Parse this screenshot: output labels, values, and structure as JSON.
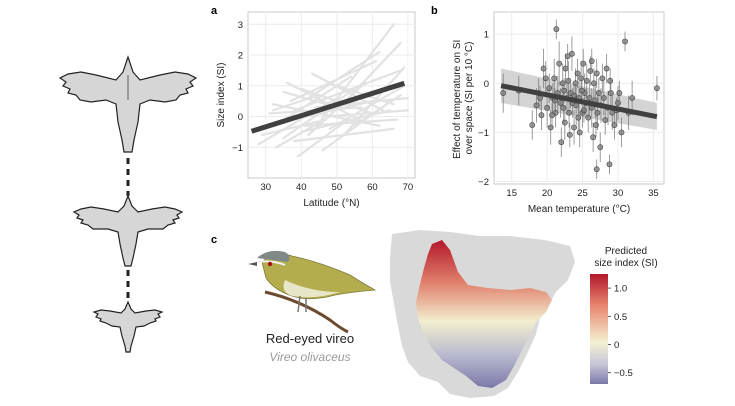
{
  "panels": {
    "a_letter": "a",
    "b_letter": "b",
    "c_letter": "c"
  },
  "chart_data": [
    {
      "panel": "a",
      "type": "line",
      "xlabel": "Latitude (°N)",
      "ylabel": "Size index (SI)",
      "xlim": [
        25,
        72
      ],
      "ylim": [
        -2,
        3.4
      ],
      "xticks": [
        30,
        40,
        50,
        60,
        70
      ],
      "yticks": [
        -1,
        0,
        1,
        2,
        3
      ],
      "grid": true,
      "series": [
        {
          "x": [
            26,
            69
          ],
          "y": [
            -0.48,
            1.08
          ]
        }
      ],
      "species_lines": [
        [
          30,
          -0.3,
          60,
          0.5
        ],
        [
          32,
          0.4,
          62,
          -0.3
        ],
        [
          35,
          -0.7,
          55,
          0.9
        ],
        [
          38,
          0.2,
          68,
          1.5
        ],
        [
          40,
          -0.5,
          65,
          0.2
        ],
        [
          42,
          0.6,
          62,
          2.1
        ],
        [
          45,
          -0.2,
          66,
          3.0
        ],
        [
          28,
          -0.9,
          50,
          0.6
        ],
        [
          36,
          1.1,
          58,
          -0.2
        ],
        [
          44,
          0.3,
          70,
          0.6
        ],
        [
          33,
          -1.0,
          48,
          0.0
        ],
        [
          48,
          -0.4,
          69,
          1.0
        ],
        [
          40,
          0.9,
          60,
          0.1
        ],
        [
          50,
          0.2,
          68,
          2.4
        ],
        [
          31,
          0.1,
          57,
          0.3
        ],
        [
          38,
          -0.8,
          66,
          -0.4
        ],
        [
          46,
          -1.1,
          64,
          0.4
        ],
        [
          43,
          1.4,
          63,
          0.2
        ],
        [
          34,
          -0.2,
          54,
          1.3
        ],
        [
          52,
          -0.6,
          69,
          1.6
        ],
        [
          29,
          -0.6,
          47,
          -0.1
        ],
        [
          37,
          0.5,
          61,
          1.8
        ],
        [
          41,
          -0.3,
          67,
          -0.1
        ],
        [
          47,
          0.0,
          70,
          0.2
        ],
        [
          39,
          -1.3,
          52,
          -0.2
        ],
        [
          55,
          -0.3,
          68,
          0.7
        ],
        [
          35,
          0.8,
          50,
          0.3
        ],
        [
          42,
          -0.6,
          58,
          1.1
        ],
        [
          50,
          1.0,
          66,
          0.4
        ],
        [
          32,
          0.2,
          45,
          0.7
        ]
      ]
    },
    {
      "panel": "b",
      "type": "scatter",
      "xlabel": "Mean temperature (°C)",
      "ylabel": "Effect of temperature on SI over space (SI per 10 °C)",
      "xlim": [
        12.5,
        36.5
      ],
      "ylim": [
        -2.05,
        1.45
      ],
      "xticks": [
        15,
        20,
        25,
        30,
        35
      ],
      "yticks": [
        -2,
        -1,
        0,
        1
      ],
      "grid": true,
      "fit": {
        "x": [
          13.5,
          35.5
        ],
        "y": [
          -0.05,
          -0.68
        ]
      },
      "band": {
        "x": [
          13.5,
          35.5
        ],
        "upper": [
          0.3,
          -0.4
        ],
        "lower": [
          -0.4,
          -0.95
        ]
      },
      "points": [
        [
          13.8,
          -0.2,
          0.4
        ],
        [
          16.0,
          -0.15,
          0.3
        ],
        [
          17.9,
          -0.85,
          0.3
        ],
        [
          18.5,
          -0.45,
          0.35
        ],
        [
          18.8,
          -0.2,
          0.3
        ],
        [
          19.2,
          -0.65,
          0.3
        ],
        [
          19.5,
          0.3,
          0.4
        ],
        [
          19.8,
          0.1,
          0.35
        ],
        [
          20.0,
          -0.5,
          0.4
        ],
        [
          20.3,
          -0.1,
          0.3
        ],
        [
          20.5,
          -0.9,
          0.35
        ],
        [
          20.8,
          -0.3,
          0.3
        ],
        [
          21.0,
          0.1,
          0.4
        ],
        [
          21.2,
          -0.6,
          0.3
        ],
        [
          21.3,
          1.1,
          0.2
        ],
        [
          21.5,
          -0.2,
          0.35
        ],
        [
          21.7,
          0.4,
          0.45
        ],
        [
          21.9,
          -0.4,
          0.3
        ],
        [
          22.0,
          -1.2,
          0.3
        ],
        [
          22.2,
          0.0,
          0.4
        ],
        [
          22.3,
          -0.5,
          0.3
        ],
        [
          22.5,
          -0.8,
          0.35
        ],
        [
          22.6,
          0.3,
          0.3
        ],
        [
          22.8,
          -0.3,
          0.35
        ],
        [
          23.0,
          0.05,
          0.4
        ],
        [
          23.1,
          -0.6,
          0.3
        ],
        [
          23.3,
          -0.2,
          0.3
        ],
        [
          23.5,
          0.6,
          0.35
        ],
        [
          23.6,
          -0.4,
          0.3
        ],
        [
          23.8,
          -0.9,
          0.35
        ],
        [
          24.0,
          0.0,
          0.3
        ],
        [
          24.1,
          -0.45,
          0.4
        ],
        [
          24.3,
          0.2,
          0.3
        ],
        [
          24.5,
          -0.3,
          0.35
        ],
        [
          24.6,
          -1.0,
          0.3
        ],
        [
          24.8,
          0.1,
          0.35
        ],
        [
          25.0,
          -0.6,
          0.3
        ],
        [
          25.1,
          0.4,
          0.3
        ],
        [
          25.3,
          -0.2,
          0.4
        ],
        [
          25.5,
          -0.4,
          0.3
        ],
        [
          25.6,
          0.05,
          0.35
        ],
        [
          25.8,
          -0.7,
          0.3
        ],
        [
          26.0,
          -0.3,
          0.35
        ],
        [
          26.1,
          0.25,
          0.3
        ],
        [
          26.3,
          -0.5,
          0.4
        ],
        [
          26.5,
          -1.1,
          0.3
        ],
        [
          26.6,
          0.0,
          0.3
        ],
        [
          26.8,
          -0.35,
          0.35
        ],
        [
          27.0,
          0.2,
          0.3
        ],
        [
          27.1,
          -0.6,
          0.35
        ],
        [
          27.3,
          -0.2,
          0.3
        ],
        [
          27.5,
          -1.3,
          0.3
        ],
        [
          27.6,
          -0.45,
          0.35
        ],
        [
          27.8,
          0.1,
          0.3
        ],
        [
          28.0,
          -0.3,
          0.35
        ],
        [
          28.2,
          -0.75,
          0.3
        ],
        [
          28.4,
          0.3,
          0.3
        ],
        [
          28.6,
          -0.5,
          0.35
        ],
        [
          28.8,
          -1.65,
          0.2
        ],
        [
          29.0,
          -0.2,
          0.3
        ],
        [
          29.2,
          -0.6,
          0.35
        ],
        [
          29.5,
          -0.85,
          0.3
        ],
        [
          30.0,
          -0.4,
          0.35
        ],
        [
          30.5,
          -1.0,
          0.3
        ],
        [
          31.0,
          0.85,
          0.2
        ],
        [
          31.5,
          -0.6,
          0.35
        ],
        [
          27.0,
          -1.75,
          0.2
        ],
        [
          32.0,
          -0.3,
          0.35
        ],
        [
          35.5,
          -0.1,
          0.25
        ],
        [
          23.8,
          -0.25,
          0.25
        ],
        [
          25.2,
          -0.55,
          0.25
        ],
        [
          22.4,
          -0.15,
          0.25
        ],
        [
          26.9,
          -0.85,
          0.25
        ],
        [
          24.4,
          -0.7,
          0.25
        ],
        [
          21.1,
          -0.35,
          0.25
        ],
        [
          28.9,
          0.05,
          0.25
        ],
        [
          30.2,
          -0.2,
          0.25
        ],
        [
          20.7,
          -0.65,
          0.25
        ],
        [
          23.2,
          -1.05,
          0.25
        ],
        [
          26.3,
          0.45,
          0.25
        ],
        [
          19.0,
          -0.3,
          0.25
        ],
        [
          29.8,
          -0.55,
          0.25
        ],
        [
          24.9,
          -0.15,
          0.25
        ],
        [
          22.9,
          0.55,
          0.25
        ]
      ]
    },
    {
      "panel": "c",
      "type": "heatmap",
      "legend_title_line1": "Predicted",
      "legend_title_line2": "size index (SI)",
      "legend_ticks": [
        "1.0",
        "0.5",
        "0",
        "−0.5"
      ],
      "legend_values": [
        1.0,
        0.5,
        0,
        -0.5
      ],
      "legend_range": [
        -0.7,
        1.25
      ]
    }
  ],
  "species": {
    "common_name": "Red-eyed vireo",
    "scientific_name": "Vireo olivaceus"
  },
  "colors": {
    "fit_line": "#404040",
    "species_line": "#e2e2e2",
    "grid": "#ececec",
    "point_fill": "#7a7a7a",
    "band": "#cfcfcf",
    "scale_high": "#b2182b",
    "scale_mid": "#f2eecf",
    "scale_low": "#7b78a8",
    "land": "#d9d9d9"
  }
}
